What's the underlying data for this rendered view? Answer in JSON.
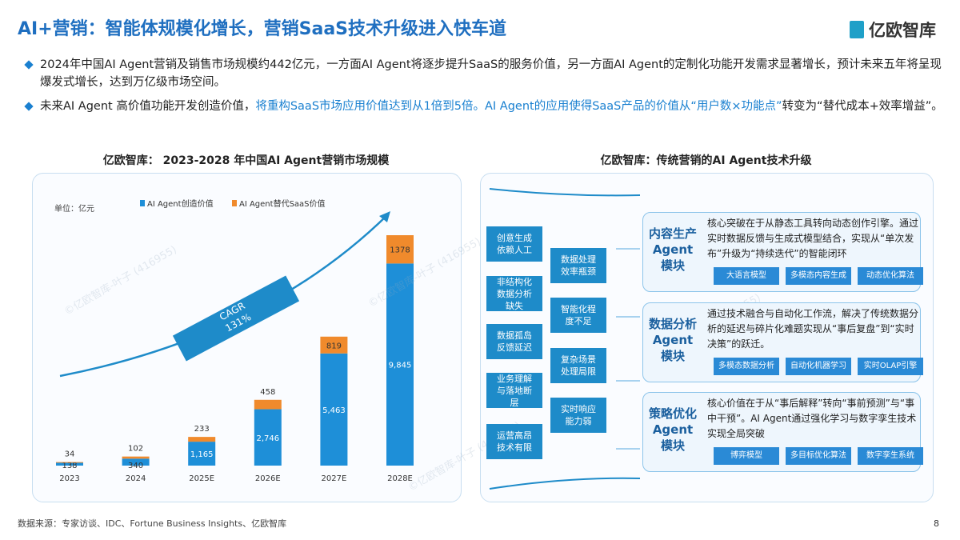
{
  "header": {
    "title": "AI+营销：智能体规模化增长，营销SaaS技术升级进入快车道",
    "logo": "亿欧智库"
  },
  "bullets": [
    {
      "parts": [
        "2024年中国AI Agent营销及销售市场规模约442亿元，一方面AI Agent将逐步提升SaaS的服务价值，另一方面AI Agent的定制化功能开发需求显著增长，预计未来五年将呈现爆发式增长，达到万亿级市场空间。"
      ]
    },
    {
      "parts": [
        "未来AI Agent 高价值功能开发创造价值，",
        "将重构SaaS市场应用价值达到从1倍到5倍。AI Agent的应用使得SaaS产品的价值从“用户数×功能点”",
        "转变为“替代成本+效率增益”。"
      ]
    }
  ],
  "chart_data": {
    "type": "bar",
    "stacked": true,
    "title": "亿欧智库： 2023-2028 年中国AI Agent营销市场规模",
    "unit": "单位：亿元",
    "categories": [
      "2023",
      "2024",
      "2025E",
      "2026E",
      "2027E",
      "2028E"
    ],
    "series": [
      {
        "name": "AI Agent创造价值",
        "color": "#1e8fd8",
        "values": [
          138,
          340,
          1165,
          2746,
          5463,
          9845
        ],
        "value_labels": [
          "138",
          "340",
          "1,165",
          "2,746",
          "5,463",
          "9,845"
        ]
      },
      {
        "name": "AI Agent替代SaaS价值",
        "color": "#f08a2c",
        "values": [
          34,
          102,
          233,
          458,
          819,
          1378
        ]
      }
    ],
    "annotations": [
      "CAGR",
      "131%"
    ]
  },
  "diagram": {
    "title": "亿欧智库：传统营销的AI Agent技术升级",
    "pain_points": [
      "创意生成依赖人工",
      "非结构化数据分析缺失",
      "数据孤岛反馈延迟",
      "业务理解与落地断层",
      "运营高昂技术有限"
    ],
    "bottlenecks": [
      "数据处理效率瓶颈",
      "智能化程度不足",
      "复杂场景处理局限",
      "实时响应能力弱"
    ],
    "modules": [
      {
        "name": "内容生产Agent模块",
        "text": "核心突破在于从静态工具转向动态创作引擎。通过实时数据反馈与生成式模型结合，实现从“单次发布”升级为“持续迭代”的智能闭环",
        "tags": [
          "大语言模型",
          "多模态内容生成",
          "动态优化算法"
        ]
      },
      {
        "name": "数据分析Agent模块",
        "text": "通过技术融合与自动化工作流，解决了传统数据分析的延迟与碎片化难题实现从“事后复盘”到“实时决策”的跃迁。",
        "tags": [
          "多模态数据分析",
          "自动化机器学习",
          "实时OLAP引擎"
        ]
      },
      {
        "name": "策略优化Agent模块",
        "text": "核心价值在于从“事后解释”转向“事前预测”与“事中干预”。AI Agent通过强化学习与数字孪生技术实现全局突破",
        "tags": [
          "博弈模型",
          "多目标优化算法",
          "数字孪生系统"
        ]
      }
    ]
  },
  "watermark": "©亿欧智库-叶子 (416955)",
  "footer": {
    "source": "数据来源：专家访谈、IDC、Fortune Business Insights、亿欧智库",
    "page": "8"
  }
}
